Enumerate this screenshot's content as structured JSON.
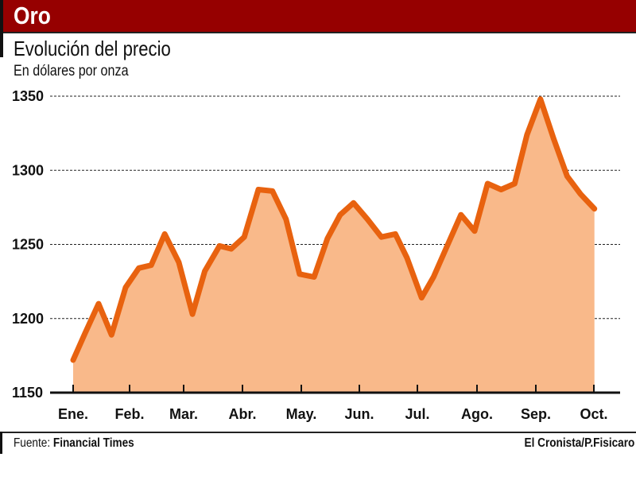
{
  "header": {
    "title": "Oro"
  },
  "chart_data": {
    "type": "area",
    "title": "Evolución del precio",
    "subtitle": "En dólares por onza",
    "xlabel": "",
    "ylabel": "",
    "ylim": [
      1150,
      1350
    ],
    "yticks": [
      "1350",
      "1300",
      "1250",
      "1200",
      "1150"
    ],
    "ytick_values": [
      1350,
      1300,
      1250,
      1200,
      1150
    ],
    "categories": [
      "Ene.",
      "Feb.",
      "Mar.",
      "Abr.",
      "May.",
      "Jun.",
      "Jul.",
      "Ago.",
      "Sep.",
      "Oct."
    ],
    "grid": true,
    "line_color": "#e8620f",
    "fill_color": "#f9b98a",
    "series": [
      {
        "name": "Oro",
        "x": [
          0,
          0.21,
          0.45,
          0.68,
          0.93,
          1.17,
          1.4,
          1.65,
          1.91,
          2.15,
          2.36,
          2.61,
          2.81,
          3.03,
          3.27,
          3.51,
          3.74,
          3.97,
          4.22,
          4.45,
          4.67,
          4.9,
          5.14,
          5.38,
          5.62,
          5.82,
          6.07,
          6.27,
          6.51,
          6.73,
          6.96,
          7.18,
          7.41,
          7.64,
          7.85,
          8.08,
          8.31,
          8.54,
          8.77,
          9.01
        ],
        "values": [
          1172,
          1190,
          1210,
          1189,
          1221,
          1234,
          1236,
          1257,
          1238,
          1203,
          1232,
          1249,
          1247,
          1255,
          1287,
          1286,
          1267,
          1230,
          1228,
          1254,
          1270,
          1278,
          1267,
          1255,
          1257,
          1241,
          1214,
          1228,
          1250,
          1270,
          1259,
          1291,
          1287,
          1291,
          1324,
          1348,
          1321,
          1296,
          1284,
          1274
        ]
      }
    ]
  },
  "footer": {
    "source_label": "Fuente:",
    "source_name": "Financial Times",
    "credit": "El Cronista/P.Fisicaro"
  }
}
